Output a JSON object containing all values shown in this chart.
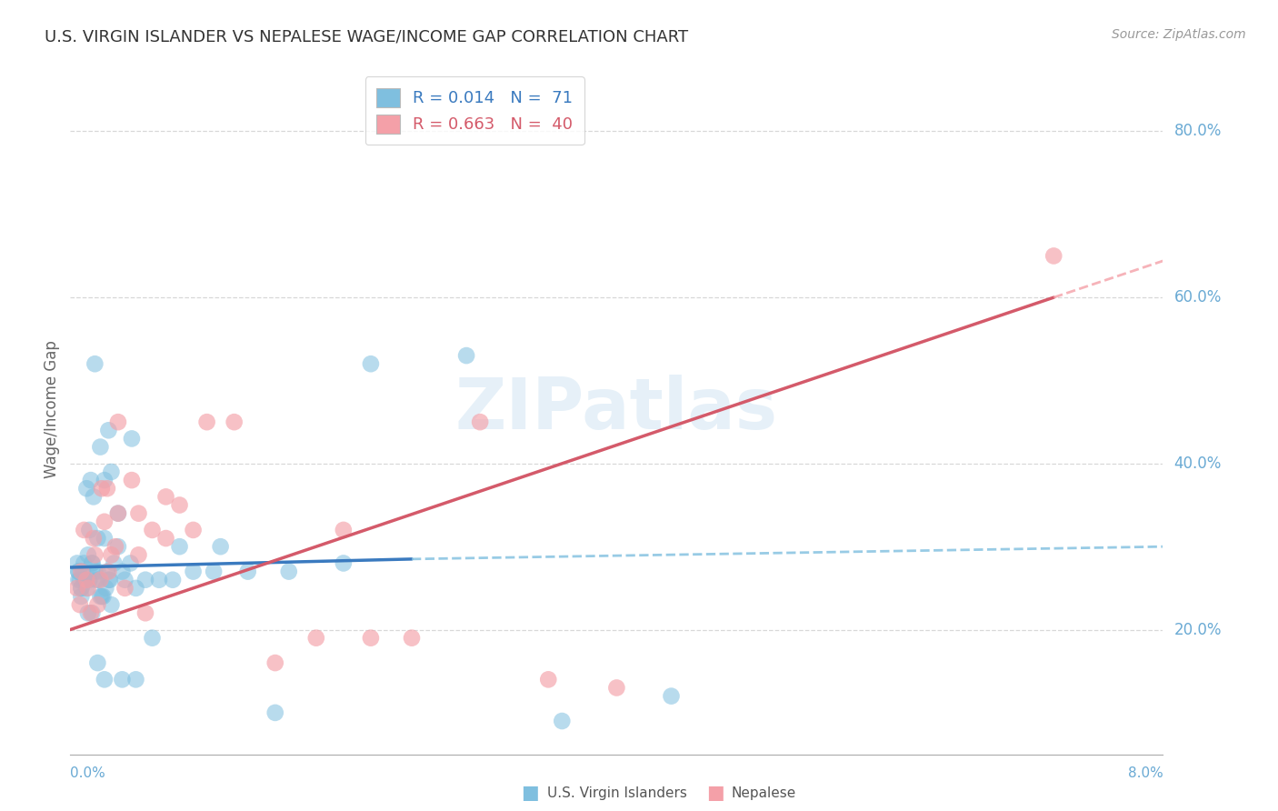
{
  "title": "U.S. VIRGIN ISLANDER VS NEPALESE WAGE/INCOME GAP CORRELATION CHART",
  "source": "Source: ZipAtlas.com",
  "ylabel": "Wage/Income Gap",
  "xlim": [
    0.0,
    8.0
  ],
  "ylim": [
    5.0,
    88.0
  ],
  "background_color": "#ffffff",
  "watermark": "ZIPatlas",
  "legend1_label": "R = 0.014   N =  71",
  "legend2_label": "R = 0.663   N =  40",
  "blue_color": "#7fbfdf",
  "pink_color": "#f4a0a8",
  "blue_line_color": "#3a7abf",
  "pink_line_color": "#d45a6a",
  "grid_color": "#d8d8d8",
  "right_label_color": "#6aaad4",
  "ytick_positions": [
    20,
    40,
    60,
    80
  ],
  "ytick_labels": [
    "20.0%",
    "40.0%",
    "60.0%",
    "80.0%"
  ],
  "blue_scatter_x": [
    0.05,
    0.06,
    0.07,
    0.08,
    0.09,
    0.1,
    0.11,
    0.12,
    0.13,
    0.14,
    0.15,
    0.16,
    0.17,
    0.18,
    0.19,
    0.2,
    0.21,
    0.22,
    0.23,
    0.24,
    0.25,
    0.26,
    0.27,
    0.28,
    0.29,
    0.3,
    0.32,
    0.35,
    0.38,
    0.4,
    0.44,
    0.48,
    0.55,
    0.65,
    0.75,
    0.9,
    1.05,
    1.3,
    1.6,
    2.0,
    0.06,
    0.08,
    0.1,
    0.12,
    0.14,
    0.16,
    0.18,
    0.2,
    0.22,
    0.25,
    0.06,
    0.08,
    0.1,
    0.13,
    0.16,
    0.2,
    0.25,
    0.3,
    0.38,
    0.48,
    0.6,
    0.8,
    1.1,
    1.5,
    2.2,
    2.9,
    3.6,
    4.4,
    0.35,
    0.45,
    0.28
  ],
  "blue_scatter_y": [
    28,
    27,
    26,
    25,
    27,
    28,
    26,
    37,
    29,
    32,
    38,
    28,
    36,
    52,
    26,
    27,
    26,
    42,
    24,
    24,
    38,
    25,
    27,
    44,
    26,
    39,
    28,
    30,
    27,
    26,
    28,
    25,
    26,
    26,
    26,
    27,
    27,
    27,
    27,
    28,
    27,
    25,
    26,
    25,
    26,
    28,
    27,
    31,
    24,
    31,
    26,
    24,
    26,
    22,
    22,
    16,
    14,
    23,
    14,
    14,
    19,
    30,
    30,
    10,
    52,
    53,
    9,
    12,
    34,
    43,
    26
  ],
  "pink_scatter_x": [
    0.05,
    0.07,
    0.08,
    0.1,
    0.12,
    0.13,
    0.15,
    0.17,
    0.18,
    0.2,
    0.22,
    0.23,
    0.25,
    0.27,
    0.28,
    0.3,
    0.33,
    0.35,
    0.4,
    0.45,
    0.5,
    0.55,
    0.6,
    0.7,
    0.8,
    0.9,
    1.0,
    1.2,
    1.5,
    1.8,
    2.0,
    2.5,
    3.0,
    3.5,
    4.0,
    0.35,
    0.5,
    0.7,
    2.2,
    7.2
  ],
  "pink_scatter_y": [
    25,
    23,
    27,
    32,
    26,
    25,
    22,
    31,
    29,
    23,
    26,
    37,
    33,
    37,
    27,
    29,
    30,
    34,
    25,
    38,
    34,
    22,
    32,
    36,
    35,
    32,
    45,
    45,
    16,
    19,
    32,
    19,
    45,
    14,
    13,
    45,
    29,
    31,
    19,
    65
  ],
  "blue_line_x1": 0.0,
  "blue_line_y1": 27.5,
  "blue_line_x2": 2.5,
  "blue_line_y2": 28.5,
  "blue_dash_x1": 2.5,
  "blue_dash_y1": 28.5,
  "blue_dash_x2": 8.0,
  "blue_dash_y2": 30.0,
  "pink_line_x1": 0.0,
  "pink_line_y1": 20.0,
  "pink_line_x2": 7.2,
  "pink_line_y2": 60.0,
  "pink_dash_x1": 7.2,
  "pink_dash_y1": 60.0,
  "pink_dash_x2": 8.0,
  "pink_dash_y2": 64.4
}
